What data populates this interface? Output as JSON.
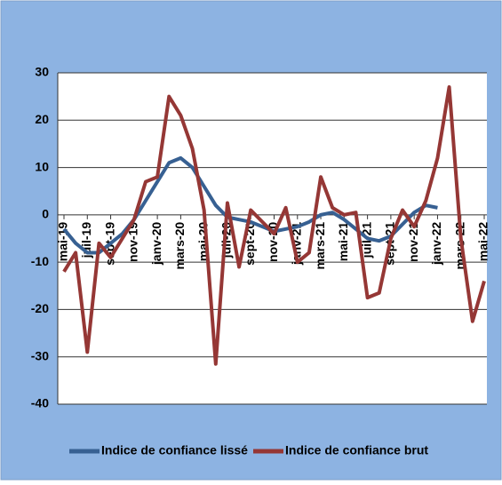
{
  "chart_data": {
    "type": "line",
    "categories": [
      "mai-19",
      null,
      "juil-19",
      null,
      "sept-19",
      null,
      "nov-19",
      null,
      "janv-20",
      null,
      "mars-20",
      null,
      "mai-20",
      null,
      "juil-20",
      null,
      "sept-20",
      null,
      "nov-20",
      null,
      "janv-21",
      null,
      "mars-21",
      null,
      "mai-21",
      null,
      "juil-21",
      null,
      "sept-21",
      null,
      "nov-21",
      null,
      "janv-22",
      null,
      "mars-22",
      null,
      "mai-22"
    ],
    "series": [
      {
        "name": "Indice de confiance lissé",
        "color": "#376092",
        "values": [
          -3,
          -6,
          -8,
          -8,
          -6,
          -4,
          -1,
          3,
          7,
          11,
          12,
          10,
          6,
          2,
          -0.5,
          -1,
          -1.5,
          -2.5,
          -3.5,
          -3,
          -2.5,
          -1.5,
          0,
          0.5,
          -1,
          -3,
          -5,
          -5.5,
          -4.5,
          -2,
          0.5,
          2,
          1.5,
          null,
          null,
          null,
          null
        ]
      },
      {
        "name": "Indice de confiance brut",
        "color": "#953735",
        "values": [
          -12,
          -8,
          -29,
          -6,
          -9,
          -5,
          -1,
          7,
          8,
          25,
          21,
          14,
          1,
          -31.5,
          2.5,
          -11,
          1,
          -1.5,
          -4,
          1.5,
          -10,
          -8,
          8,
          1.5,
          0,
          0.5,
          -17.5,
          -16.5,
          -5,
          1,
          -2.5,
          3,
          12,
          27,
          -5,
          -22.5,
          -14
        ]
      }
    ],
    "ylim": [
      -40,
      30
    ],
    "yticks": [
      -40,
      -30,
      -20,
      -10,
      0,
      10,
      20,
      30
    ],
    "grid": true,
    "legend": "bottom"
  }
}
